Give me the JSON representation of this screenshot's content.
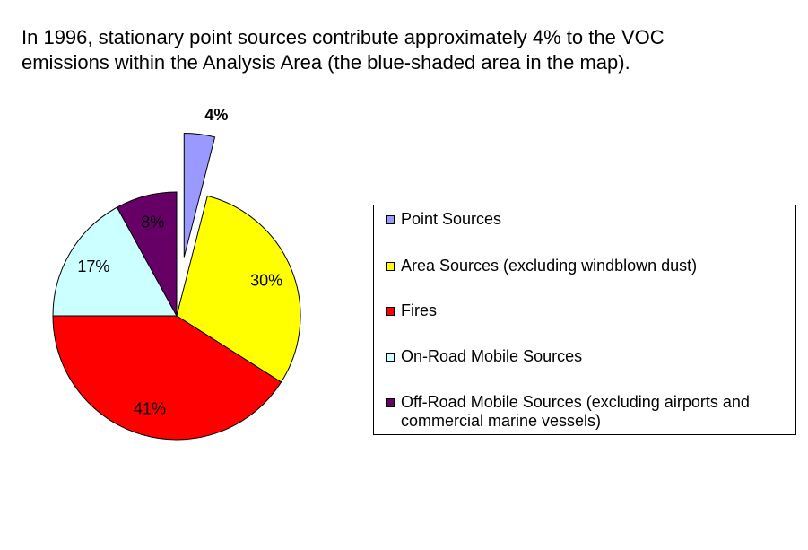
{
  "headline": {
    "line1": "In 1996, stationary point sources contribute approximately 4% to the VOC",
    "line2": "emissions within the Analysis Area (the blue-shaded area in the map)."
  },
  "chart_data": {
    "type": "pie",
    "title": "",
    "exploded": "Point Sources",
    "legend_position": "right",
    "slices": [
      {
        "name": "Point Sources",
        "value": 4,
        "label": "4%",
        "color": "#9999ff",
        "label_bold": true
      },
      {
        "name": "Area Sources (excluding windblown dust)",
        "value": 30,
        "label": "30%",
        "color": "#ffff00"
      },
      {
        "name": "Fires",
        "value": 41,
        "label": "41%",
        "color": "#ff0000"
      },
      {
        "name": "On-Road Mobile Sources",
        "value": 17,
        "label": "17%",
        "color": "#ccffff"
      },
      {
        "name": "Off-Road Mobile Sources (excluding airports and commercial marine vessels)",
        "value": 8,
        "label": "8%",
        "color": "#660066"
      }
    ]
  }
}
